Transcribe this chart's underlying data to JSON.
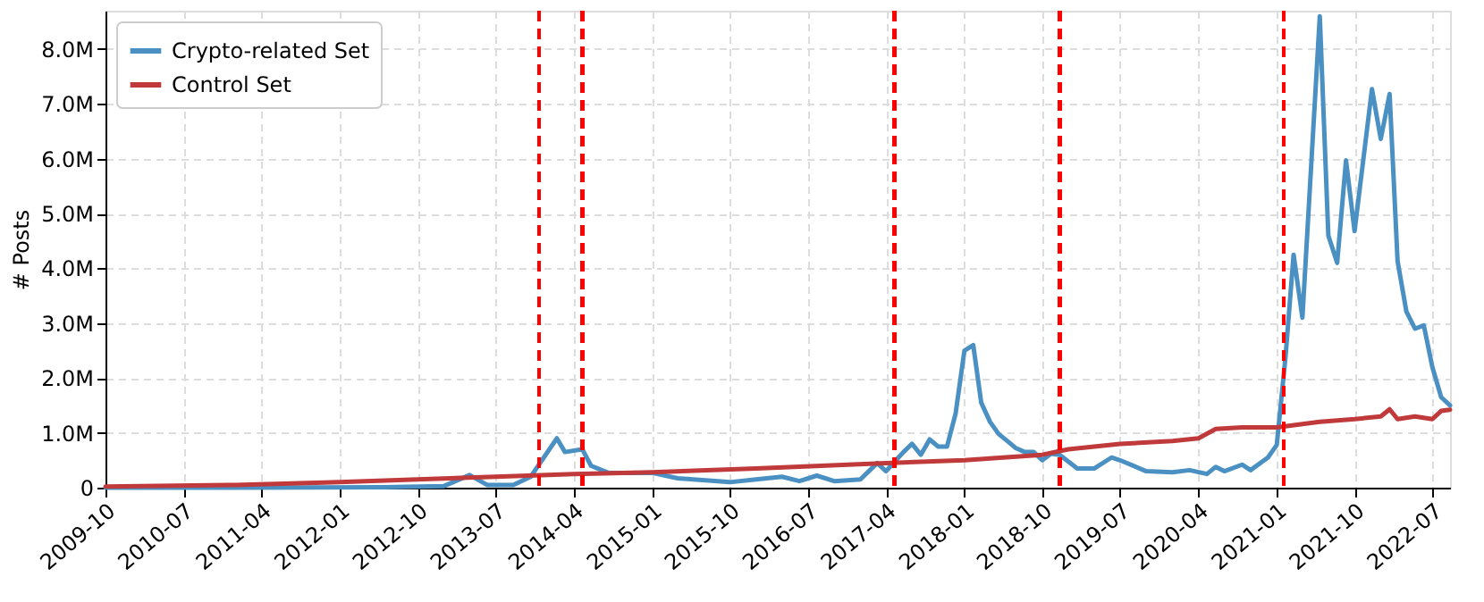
{
  "chart_data": {
    "type": "line",
    "ylabel": "# Posts",
    "xlim": [
      "2009-10",
      "2022-09"
    ],
    "xticks": [
      "2009-10",
      "2010-07",
      "2011-04",
      "2012-01",
      "2012-10",
      "2013-07",
      "2014-04",
      "2015-01",
      "2015-10",
      "2016-07",
      "2017-04",
      "2018-01",
      "2018-10",
      "2019-07",
      "2020-04",
      "2021-01",
      "2021-10",
      "2022-07"
    ],
    "ylim": [
      0,
      8700000
    ],
    "yticks": [
      0,
      {
        "value": 1000000,
        "label": "1.0M"
      },
      {
        "value": 2000000,
        "label": "2.0M"
      },
      {
        "value": 3000000,
        "label": "3.0M"
      },
      {
        "value": 4000000,
        "label": "4.0M"
      },
      {
        "value": 5000000,
        "label": "5.0M"
      },
      {
        "value": 6000000,
        "label": "6.0M"
      },
      {
        "value": 7000000,
        "label": "7.0M"
      },
      {
        "value": 8000000,
        "label": "8.0M"
      }
    ],
    "grid": true,
    "legend": "top left",
    "line_style": "solid",
    "marker": "none",
    "series": [
      {
        "name": "Crypto-related Set",
        "color": "#4a90c2",
        "x": [
          "2009-10",
          "2011-01",
          "2012-06",
          "2013-01",
          "2013-04",
          "2013-06",
          "2013-09",
          "2013-11",
          "2014-02",
          "2014-03",
          "2014-05",
          "2014-06",
          "2014-08",
          "2015-01",
          "2015-04",
          "2015-10",
          "2016-01",
          "2016-04",
          "2016-06",
          "2016-08",
          "2016-10",
          "2017-01",
          "2017-03",
          "2017-04",
          "2017-06",
          "2017-07",
          "2017-08",
          "2017-09",
          "2017-10",
          "2017-11",
          "2017-12",
          "2018-01",
          "2018-02",
          "2018-03",
          "2018-04",
          "2018-05",
          "2018-06",
          "2018-07",
          "2018-08",
          "2018-09",
          "2018-10",
          "2018-11",
          "2018-12",
          "2019-02",
          "2019-04",
          "2019-06",
          "2019-07",
          "2019-10",
          "2020-01",
          "2020-03",
          "2020-05",
          "2020-06",
          "2020-07",
          "2020-09",
          "2020-10",
          "2020-12",
          "2021-01",
          "2021-02",
          "2021-03",
          "2021-04",
          "2021-06",
          "2021-07",
          "2021-08",
          "2021-09",
          "2021-10",
          "2021-12",
          "2022-01",
          "2022-02",
          "2022-03",
          "2022-04",
          "2022-05",
          "2022-06",
          "2022-07",
          "2022-08",
          "2022-09"
        ],
        "values": [
          0,
          0,
          10000,
          30000,
          230000,
          50000,
          50000,
          200000,
          900000,
          650000,
          700000,
          400000,
          270000,
          270000,
          170000,
          100000,
          150000,
          200000,
          120000,
          220000,
          120000,
          150000,
          450000,
          300000,
          650000,
          800000,
          600000,
          880000,
          750000,
          750000,
          1350000,
          2500000,
          2600000,
          1550000,
          1200000,
          980000,
          850000,
          720000,
          650000,
          650000,
          500000,
          620000,
          600000,
          350000,
          350000,
          550000,
          500000,
          300000,
          280000,
          320000,
          250000,
          380000,
          300000,
          420000,
          320000,
          550000,
          780000,
          2400000,
          4250000,
          3100000,
          8600000,
          4600000,
          4100000,
          5970000,
          4680000,
          7270000,
          6360000,
          7180000,
          4130000,
          3210000,
          2900000,
          2960000,
          2200000,
          1650000,
          1500000
        ]
      },
      {
        "name": "Control Set",
        "color": "#c0393b",
        "x": [
          "2009-10",
          "2011-01",
          "2012-01",
          "2013-07",
          "2014-04",
          "2015-01",
          "2016-01",
          "2017-04",
          "2018-01",
          "2018-10",
          "2019-01",
          "2019-07",
          "2020-01",
          "2020-04",
          "2020-06",
          "2020-09",
          "2021-01",
          "2021-06",
          "2021-10",
          "2022-01",
          "2022-02",
          "2022-03",
          "2022-05",
          "2022-07",
          "2022-08",
          "2022-09"
        ],
        "values": [
          20000,
          50000,
          100000,
          200000,
          250000,
          280000,
          350000,
          450000,
          500000,
          600000,
          700000,
          800000,
          850000,
          900000,
          1070000,
          1100000,
          1100000,
          1200000,
          1250000,
          1300000,
          1430000,
          1250000,
          1300000,
          1250000,
          1400000,
          1420000
        ]
      }
    ],
    "ref_lines": [
      {
        "axis": "x",
        "value": "2013-12",
        "color": "#ff0000",
        "line_style": "dashed"
      },
      {
        "axis": "x",
        "value": "2014-05",
        "color": "#ff0000",
        "line_style": "dashed"
      },
      {
        "axis": "x",
        "value": "2017-05",
        "color": "#ff0000",
        "line_style": "dashed"
      },
      {
        "axis": "x",
        "value": "2018-12",
        "color": "#ff0000",
        "line_style": "dashed"
      },
      {
        "axis": "x",
        "value": "2021-01-25",
        "color": "#ff0000",
        "line_style": "dashed"
      }
    ]
  }
}
